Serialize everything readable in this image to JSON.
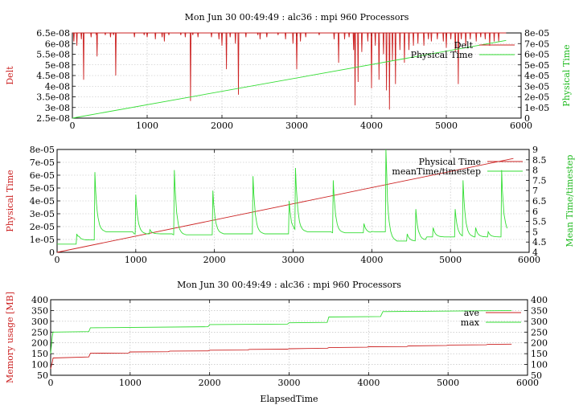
{
  "colors": {
    "red": "#cc2222",
    "green": "#33dd33",
    "grid": "#b8b8b8",
    "frame": "#000000"
  },
  "chart_data": [
    {
      "type": "line",
      "title": "Mon Jun 30 00:49:49 : alc36 : mpi 960 Processors",
      "xlabel": "",
      "ylabel_left": "Delt",
      "ylabel_right": "Physical Time",
      "xlim": [
        0,
        6000
      ],
      "ylim_left": [
        2.5e-08,
        6.5e-08
      ],
      "ylim_right": [
        0,
        8e-05
      ],
      "x_ticks": [
        "0",
        "1000",
        "2000",
        "3000",
        "4000",
        "5000",
        "6000"
      ],
      "y_ticks_left": [
        "2.5e-08",
        "3e-08",
        "3.5e-08",
        "4e-08",
        "4.5e-08",
        "5e-08",
        "5.5e-08",
        "6e-08",
        "6.5e-08"
      ],
      "y_ticks_right": [
        "0",
        "1e-05",
        "2e-05",
        "3e-05",
        "4e-05",
        "5e-05",
        "6e-05",
        "7e-05",
        "8e-05"
      ],
      "grid": true,
      "legend_position": "top-right",
      "series": [
        {
          "name": "Delt",
          "axis": "left",
          "color": "red",
          "baseline": 6.5e-08,
          "dips": [
            [
              20,
              6.1e-08
            ],
            [
              60,
              5.9e-08
            ],
            [
              120,
              6.2e-08
            ],
            [
              150,
              4.3e-08
            ],
            [
              250,
              6.3e-08
            ],
            [
              320,
              6.4e-08
            ],
            [
              330,
              5.4e-08
            ],
            [
              440,
              6.4e-08
            ],
            [
              510,
              6.3e-08
            ],
            [
              550,
              6.4e-08
            ],
            [
              580,
              4.5e-08
            ],
            [
              830,
              6.3e-08
            ],
            [
              960,
              6.4e-08
            ],
            [
              1000,
              6.3e-08
            ],
            [
              1110,
              6.2e-08
            ],
            [
              1200,
              6.3e-08
            ],
            [
              1230,
              6.1e-08
            ],
            [
              1290,
              6.4e-08
            ],
            [
              1450,
              6.4e-08
            ],
            [
              1510,
              6.3e-08
            ],
            [
              1580,
              3.3e-08
            ],
            [
              1610,
              6.4e-08
            ],
            [
              1680,
              6.3e-08
            ],
            [
              1860,
              6.3e-08
            ],
            [
              1960,
              6.2e-08
            ],
            [
              2000,
              5.9e-08
            ],
            [
              2060,
              4.8e-08
            ],
            [
              2110,
              6.3e-08
            ],
            [
              2180,
              6e-08
            ],
            [
              2220,
              3.6e-08
            ],
            [
              2320,
              6.3e-08
            ],
            [
              2480,
              6.4e-08
            ],
            [
              2510,
              6.2e-08
            ],
            [
              2600,
              6.3e-08
            ],
            [
              2750,
              6.4e-08
            ],
            [
              2850,
              6.2e-08
            ],
            [
              2950,
              6e-08
            ],
            [
              3000,
              4.8e-08
            ],
            [
              3050,
              6.1e-08
            ],
            [
              3120,
              6.3e-08
            ],
            [
              3300,
              6.4e-08
            ],
            [
              3500,
              6.2e-08
            ],
            [
              3560,
              5.1e-08
            ],
            [
              3640,
              6.2e-08
            ],
            [
              3700,
              6.3e-08
            ],
            [
              3760,
              5.7e-08
            ],
            [
              3780,
              3.1e-08
            ],
            [
              3820,
              4.2e-08
            ],
            [
              3870,
              5.6e-08
            ],
            [
              3950,
              6.1e-08
            ],
            [
              4000,
              3.9e-08
            ],
            [
              4050,
              5.9e-08
            ],
            [
              4100,
              4.3e-08
            ],
            [
              4160,
              5.5e-08
            ],
            [
              4200,
              3.8e-08
            ],
            [
              4240,
              2.9e-08
            ],
            [
              4280,
              5.2e-08
            ],
            [
              4320,
              4.1e-08
            ],
            [
              4380,
              5.7e-08
            ],
            [
              4440,
              5.1e-08
            ],
            [
              4500,
              5.7e-08
            ],
            [
              4560,
              5.9e-08
            ],
            [
              4620,
              6e-08
            ],
            [
              4700,
              5.9e-08
            ],
            [
              4760,
              6.2e-08
            ],
            [
              4800,
              6.1e-08
            ],
            [
              4880,
              6.2e-08
            ],
            [
              4960,
              6.1e-08
            ],
            [
              5000,
              5.8e-08
            ],
            [
              5060,
              6.2e-08
            ],
            [
              5120,
              5.6e-08
            ],
            [
              5160,
              4.1e-08
            ],
            [
              5200,
              6.2e-08
            ],
            [
              5260,
              5.9e-08
            ],
            [
              5320,
              6.2e-08
            ],
            [
              5400,
              6.1e-08
            ],
            [
              5460,
              6.3e-08
            ],
            [
              5520,
              6.2e-08
            ],
            [
              5580,
              5.9e-08
            ],
            [
              5640,
              6.1e-08
            ],
            [
              5700,
              6.1e-08
            ]
          ]
        },
        {
          "name": "Physical Time",
          "axis": "right",
          "color": "green",
          "x": [
            0,
            5800
          ],
          "y": [
            0,
            7.3e-05
          ]
        }
      ]
    },
    {
      "type": "line",
      "title": "",
      "xlabel": "",
      "ylabel_left": "Physical Time",
      "ylabel_right": "Mean Time/timestep",
      "xlim": [
        0,
        6000
      ],
      "ylim_left": [
        0,
        8e-05
      ],
      "ylim_right": [
        4,
        9
      ],
      "x_ticks": [
        "0",
        "1000",
        "2000",
        "3000",
        "4000",
        "5000",
        "6000"
      ],
      "y_ticks_left": [
        "0",
        "1e-05",
        "2e-05",
        "3e-05",
        "4e-05",
        "5e-05",
        "6e-05",
        "7e-05",
        "8e-05"
      ],
      "y_ticks_right": [
        "4",
        "4.5",
        "5",
        "5.5",
        "6",
        "6.5",
        "7",
        "7.5",
        "8",
        "8.5",
        "9"
      ],
      "grid": true,
      "legend_position": "top-right",
      "series": [
        {
          "name": "Physical Time",
          "axis": "left",
          "color": "red",
          "x": [
            0,
            5800
          ],
          "y": [
            0,
            7.3e-05
          ]
        },
        {
          "name": "meanTime/timestep",
          "axis": "right",
          "color": "green",
          "baseline_segments": [
            [
              0,
              4.4
            ],
            [
              260,
              4.45
            ],
            [
              270,
              4.6
            ],
            [
              460,
              4.6
            ],
            [
              480,
              5.0
            ],
            [
              980,
              4.9
            ],
            [
              1480,
              4.85
            ],
            [
              2000,
              4.9
            ],
            [
              2500,
              4.9
            ],
            [
              3000,
              5.0
            ],
            [
              3500,
              4.95
            ],
            [
              4000,
              5.0
            ],
            [
              4200,
              4.55
            ],
            [
              4600,
              4.6
            ],
            [
              4700,
              4.75
            ],
            [
              5200,
              4.75
            ],
            [
              5700,
              4.9
            ]
          ],
          "spikes": [
            [
              250,
              4.9
            ],
            [
              480,
              7.9
            ],
            [
              1000,
              6.8
            ],
            [
              1180,
              5.1
            ],
            [
              1490,
              8.0
            ],
            [
              1980,
              7.0
            ],
            [
              2490,
              7.7
            ],
            [
              2950,
              6.5
            ],
            [
              3030,
              8.1
            ],
            [
              3510,
              7.5
            ],
            [
              3900,
              5.4
            ],
            [
              4180,
              9.0
            ],
            [
              4450,
              4.9
            ],
            [
              4560,
              6.1
            ],
            [
              4780,
              5.2
            ],
            [
              5060,
              6.1
            ],
            [
              5160,
              7.5
            ],
            [
              5320,
              5.2
            ],
            [
              5480,
              5.0
            ],
            [
              5650,
              8.0
            ]
          ]
        }
      ]
    },
    {
      "type": "line",
      "title": "Mon Jun 30 00:49:49 : alc36 : mpi 960 Processors",
      "xlabel": "ElapsedTime",
      "ylabel_left": "Memory usage [MB]",
      "ylabel_right": "",
      "xlim": [
        0,
        6000
      ],
      "ylim_left": [
        50,
        400
      ],
      "ylim_right": [
        50,
        400
      ],
      "x_ticks": [
        "0",
        "1000",
        "2000",
        "3000",
        "4000",
        "5000",
        "6000"
      ],
      "y_ticks_left": [
        "50",
        "100",
        "150",
        "200",
        "250",
        "300",
        "350",
        "400"
      ],
      "y_ticks_right": [
        "50",
        "100",
        "150",
        "200",
        "250",
        "300",
        "350",
        "400"
      ],
      "grid": true,
      "legend_position": "top-right",
      "series": [
        {
          "name": "ave",
          "axis": "left",
          "color": "red",
          "x": [
            0,
            20,
            30,
            480,
            500,
            980,
            1000,
            1480,
            1500,
            1980,
            2000,
            2480,
            2500,
            2980,
            3000,
            3480,
            3500,
            3980,
            4000,
            4480,
            4500,
            4980,
            5000,
            5480,
            5500,
            5800
          ],
          "y": [
            80,
            110,
            130,
            135,
            152,
            153,
            158,
            159,
            162,
            163,
            166,
            167,
            170,
            171,
            173,
            175,
            178,
            180,
            182,
            183,
            186,
            188,
            190,
            191,
            193,
            194
          ]
        },
        {
          "name": "max",
          "axis": "left",
          "color": "green",
          "x": [
            0,
            20,
            30,
            480,
            500,
            1980,
            2000,
            2980,
            3000,
            3480,
            3500,
            4150,
            4180,
            5800
          ],
          "y": [
            150,
            230,
            250,
            252,
            270,
            275,
            285,
            287,
            293,
            295,
            320,
            322,
            345,
            350
          ]
        }
      ]
    }
  ]
}
